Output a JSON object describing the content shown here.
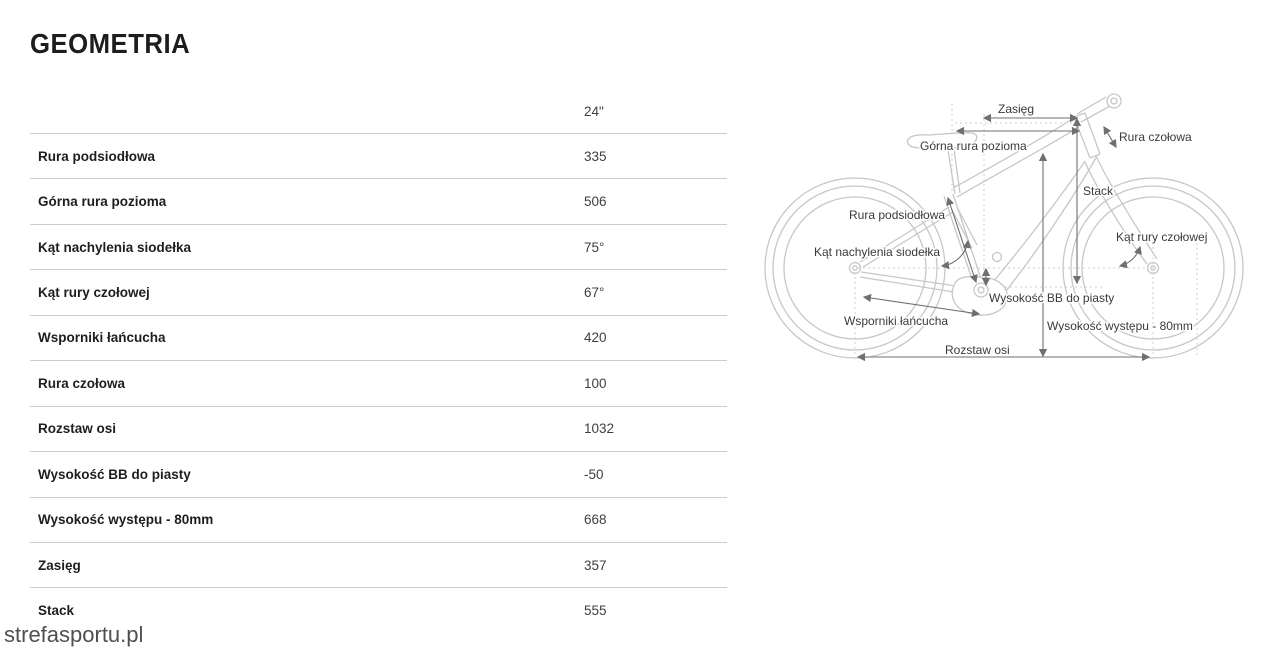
{
  "title": "GEOMETRIA",
  "watermark": "strefasportu.pl",
  "table": {
    "size_header": "24\"",
    "rows": [
      {
        "label": "Rura podsiodłowa",
        "value": "335"
      },
      {
        "label": "Górna rura pozioma",
        "value": "506"
      },
      {
        "label": "Kąt nachylenia siodełka",
        "value": "75°"
      },
      {
        "label": "Kąt rury czołowej",
        "value": "67°"
      },
      {
        "label": "Wsporniki łańcucha",
        "value": "420"
      },
      {
        "label": "Rura czołowa",
        "value": "100"
      },
      {
        "label": "Rozstaw osi",
        "value": "1032"
      },
      {
        "label": "Wysokość BB do piasty",
        "value": "-50"
      },
      {
        "label": "Wysokość występu - 80mm",
        "value": "668"
      },
      {
        "label": "Zasięg",
        "value": "357"
      },
      {
        "label": "Stack",
        "value": "555"
      }
    ]
  },
  "diagram": {
    "labels": {
      "zasieg": "Zasięg",
      "gorna_rura": "Górna rura pozioma",
      "rura_czolowa": "Rura czołowa",
      "stack": "Stack",
      "rura_podsiodlowa": "Rura podsiodłowa",
      "kat_nachylenia": "Kąt nachylenia siodełka",
      "kat_rury": "Kąt rury czołowej",
      "bb_do_piasty": "Wysokość BB do piasty",
      "wsporniki": "Wsporniki łańcucha",
      "wysokosc_wystepu": "Wysokość występu - 80mm",
      "rozstaw_osi": "Rozstaw osi"
    }
  },
  "colors": {
    "title_text": "#1d1d1d",
    "label_text": "#1e1e1e",
    "value_text": "#3f3f3f",
    "separator": "#cccccc",
    "bike_outline": "#c7c7c7",
    "dimension_arrow": "#6f6f6f",
    "diagram_text": "#3a3a3a",
    "watermark_text": "#4f4f4f"
  }
}
